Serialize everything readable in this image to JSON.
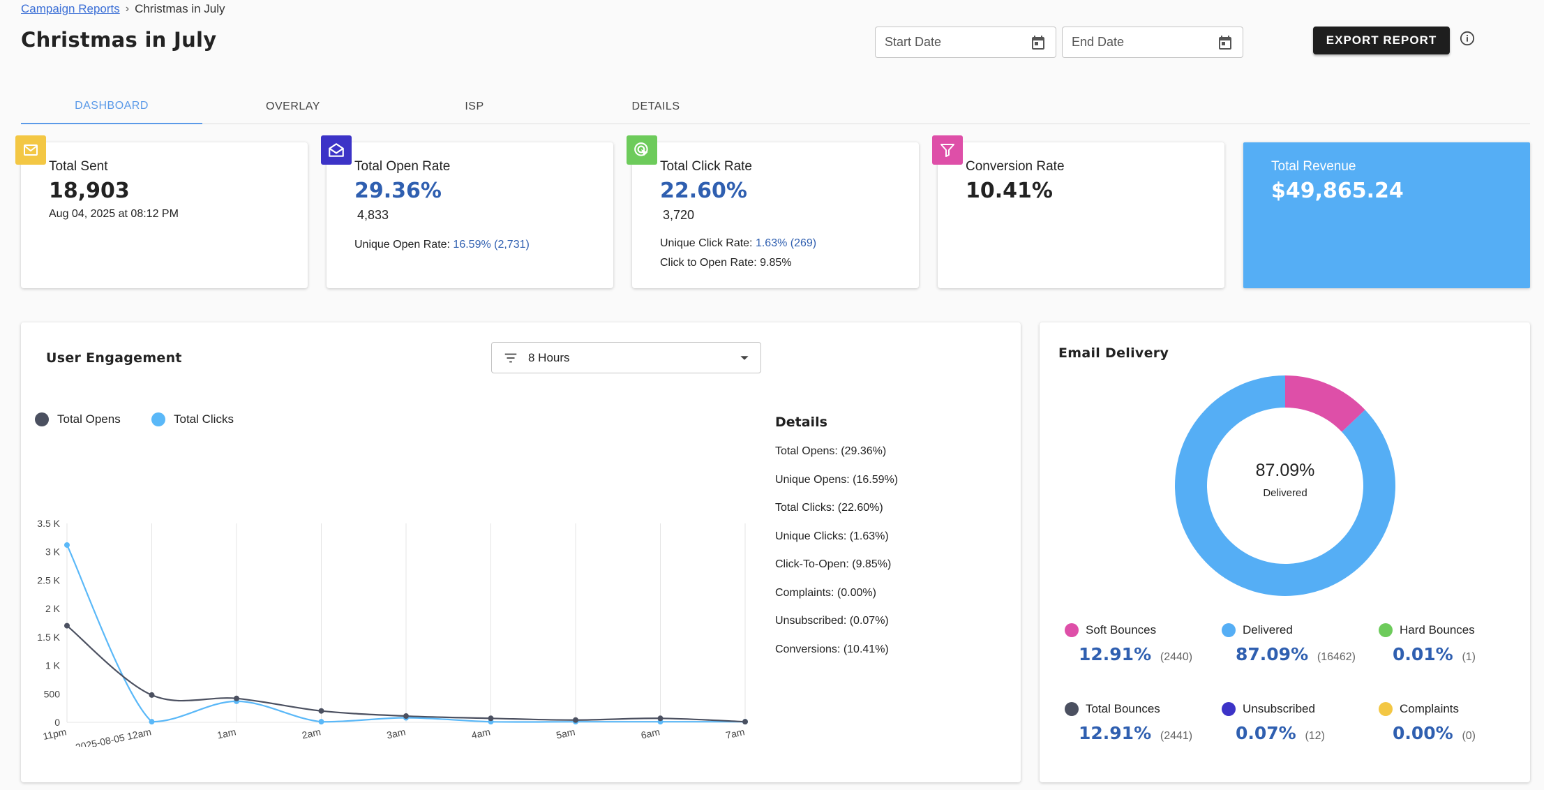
{
  "breadcrumb": {
    "link": "Campaign Reports",
    "current": "Christmas in July"
  },
  "page_title": "Christmas in July",
  "filters": {
    "start_placeholder": "Start Date",
    "end_placeholder": "End Date"
  },
  "export_label": "EXPORT REPORT",
  "tabs": [
    {
      "label": "DASHBOARD",
      "active": true
    },
    {
      "label": "OVERLAY",
      "active": false
    },
    {
      "label": "ISP",
      "active": false
    },
    {
      "label": "DETAILS",
      "active": false
    }
  ],
  "cards": {
    "sent": {
      "label": "Total Sent",
      "value": "18,903",
      "sub": "Aug 04, 2025 at 08:12 PM",
      "icon": "mail-icon",
      "color": "#f3c744"
    },
    "open": {
      "label": "Total Open Rate",
      "value": "29.36%",
      "count": "4,833",
      "unique_label": "Unique Open Rate: ",
      "unique_value": "16.59% (2,731)",
      "icon": "open-envelope-icon",
      "color": "#3c33c7"
    },
    "click": {
      "label": "Total Click Rate",
      "value": "22.60%",
      "count": "3,720",
      "unique_label": "Unique Click Rate: ",
      "unique_value": "1.63% (269)",
      "cto": "Click to Open Rate: 9.85%",
      "icon": "click-cursor-icon",
      "color": "#6dcb5b"
    },
    "conversion": {
      "label": "Conversion Rate",
      "value": "10.41%",
      "icon": "funnel-icon",
      "color": "#de4fa8"
    },
    "revenue": {
      "label": "Total Revenue",
      "value": "$49,865.24",
      "color": "#55aef5"
    }
  },
  "engagement": {
    "title": "User Engagement",
    "range": "8 Hours",
    "legend": [
      {
        "name": "Total Opens",
        "color": "#4b5060"
      },
      {
        "name": "Total Clicks",
        "color": "#5ab8f8"
      }
    ],
    "details_title": "Details",
    "details": [
      "Total Opens: (29.36%)",
      "Unique Opens: (16.59%)",
      "Total Clicks: (22.60%)",
      "Unique Clicks: (1.63%)",
      "Click-To-Open: (9.85%)",
      "Complaints: (0.00%)",
      "Unsubscribed: (0.07%)",
      "Conversions: (10.41%)"
    ]
  },
  "chart_data": {
    "type": "line",
    "categories": [
      "11pm",
      "2025-08-05 12am",
      "1am",
      "2am",
      "3am",
      "4am",
      "5am",
      "6am",
      "7am"
    ],
    "series": [
      {
        "name": "Total Opens",
        "values": [
          1700,
          480,
          420,
          200,
          110,
          70,
          40,
          70,
          10
        ]
      },
      {
        "name": "Total Clicks",
        "values": [
          3120,
          10,
          370,
          10,
          80,
          10,
          10,
          10,
          10
        ]
      }
    ],
    "ylim": [
      0,
      3500
    ],
    "yticks": [
      0,
      500,
      1000,
      1500,
      2000,
      2500,
      3000,
      3500
    ],
    "ytick_labels": [
      "0",
      "500",
      "1 K",
      "1.5 K",
      "2 K",
      "2.5 K",
      "3 K",
      "3.5 K"
    ],
    "grid": "vertical",
    "legend": "top-left"
  },
  "delivery": {
    "title": "Email Delivery",
    "center_value": "87.09%",
    "center_label": "Delivered",
    "donut": [
      {
        "name": "Delivered",
        "value": 87.09,
        "color": "#55aef5"
      },
      {
        "name": "Soft Bounces",
        "value": 12.91,
        "color": "#de4fa8"
      }
    ],
    "items": [
      {
        "label": "Soft Bounces",
        "value": "12.91%",
        "count": "(2440)",
        "color": "#de4fa8"
      },
      {
        "label": "Delivered",
        "value": "87.09%",
        "count": "(16462)",
        "color": "#55aef5"
      },
      {
        "label": "Hard Bounces",
        "value": "0.01%",
        "count": "(1)",
        "color": "#6dcb5b"
      },
      {
        "label": "Total Bounces",
        "value": "12.91%",
        "count": "(2441)",
        "color": "#4b5060"
      },
      {
        "label": "Unsubscribed",
        "value": "0.07%",
        "count": "(12)",
        "color": "#3c33c7"
      },
      {
        "label": "Complaints",
        "value": "0.00%",
        "count": "(0)",
        "color": "#f3c744"
      }
    ]
  }
}
